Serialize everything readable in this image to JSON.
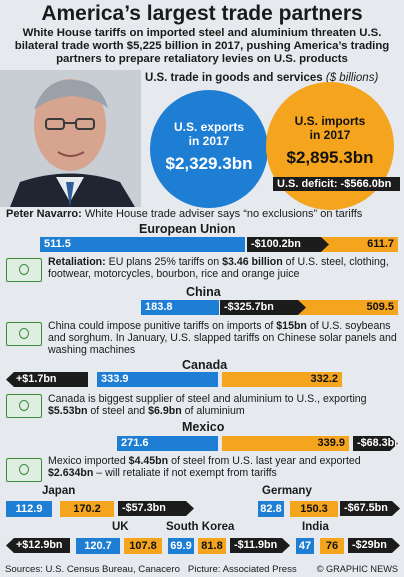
{
  "title": "America’s largest trade partners",
  "subtitle": "White House tariffs on imported steel and aluminium threaten U.S. bilateral trade worth $5,225 billion in 2017, pushing America’s trading partners to prepare retaliatory levies on U.S. products",
  "totals": {
    "heading": "U.S. trade in goods and services",
    "heading_unit": "($ billions)",
    "exports_label_line1": "U.S. exports",
    "exports_label_line2": "in 2017",
    "exports_value": "$2,329.3bn",
    "imports_label_line1": "U.S. imports",
    "imports_label_line2": "in 2017",
    "imports_value": "$2,895.3bn",
    "deficit": "U.S. deficit: -$566.0bn"
  },
  "navarro": {
    "name": "Peter Navarro:",
    "quote": " White House trade adviser says “no exclusions” on tariffs"
  },
  "colors": {
    "exports": "#1e7ed4",
    "imports": "#f5a41e",
    "balance": "#1c1c1c"
  },
  "chart_data": {
    "type": "bar",
    "title": "America’s largest trade partners",
    "unit": "$ billions",
    "series": [
      {
        "name": "U.S. exports",
        "values": [
          511.5,
          183.8,
          333.9,
          271.6,
          112.9,
          82.8,
          120.7,
          69.9,
          47
        ]
      },
      {
        "name": "U.S. imports",
        "values": [
          611.7,
          509.5,
          332.2,
          339.9,
          170.2,
          150.3,
          107.8,
          81.8,
          76
        ]
      }
    ],
    "categories": [
      "European Union",
      "China",
      "Canada",
      "Mexico",
      "Japan",
      "Germany",
      "UK",
      "South Korea",
      "India"
    ],
    "balance": [
      "-$100.2bn",
      "-$325.7bn",
      "+$1.7bn",
      "-$68.3bn",
      "-$57.3bn",
      "-$67.5bn",
      "+$12.9bn",
      "-$11.9bn",
      "-$29bn"
    ]
  },
  "labels": {
    "eu": {
      "name": "European Union",
      "exp": "511.5",
      "imp": "611.7",
      "bal": "-$100.2bn"
    },
    "cn": {
      "name": "China",
      "exp": "183.8",
      "imp": "509.5",
      "bal": "-$325.7bn"
    },
    "ca": {
      "name": "Canada",
      "exp": "333.9",
      "imp": "332.2",
      "bal": "+$1.7bn"
    },
    "mx": {
      "name": "Mexico",
      "exp": "271.6",
      "imp": "339.9",
      "bal": "-$68.3bn"
    },
    "jp": {
      "name": "Japan",
      "exp": "112.9",
      "imp": "170.2",
      "bal": "-$57.3bn"
    },
    "de": {
      "name": "Germany",
      "exp": "82.8",
      "imp": "150.3",
      "bal": "-$67.5bn"
    },
    "uk": {
      "name": "UK",
      "exp": "120.7",
      "imp": "107.8",
      "bal": "+$12.9bn"
    },
    "kr": {
      "name": "South Korea",
      "exp": "69.9",
      "imp": "81.8",
      "bal": "-$11.9bn"
    },
    "in": {
      "name": "India",
      "exp": "47",
      "imp": "76",
      "bal": "-$29bn"
    }
  },
  "notes": {
    "eu_1": "Retaliation:",
    "eu_2": " EU plans 25% tariffs on ",
    "eu_3": "$3.46 billion",
    "eu_4": " of U.S. steel, clothing, footwear, motorcycles, bourbon, rice and orange juice",
    "cn_1": "China could impose punitive tariffs on imports of ",
    "cn_2": "$15bn",
    "cn_3": " of U.S. soybeans and sorghum. In January, U.S. slapped tariffs on Chinese solar panels and washing machines",
    "ca_1": "Canada is biggest supplier of steel and aluminium to U.S., exporting ",
    "ca_2": "$5.53bn",
    "ca_3": " of steel and ",
    "ca_4": "$6.9bn",
    "ca_5": " of aluminium",
    "mx_1": "Mexico imported ",
    "mx_2": "$4.45bn",
    "mx_3": " of steel from U.S. last year and exported ",
    "mx_4": "$2.634bn",
    "mx_5": " – will retaliate if not exempt from tariffs"
  },
  "footer": {
    "sources": "Sources: U.S. Census Bureau, Canacero",
    "photo": "Picture: Associated Press",
    "credit": "© GRAPHIC NEWS"
  }
}
